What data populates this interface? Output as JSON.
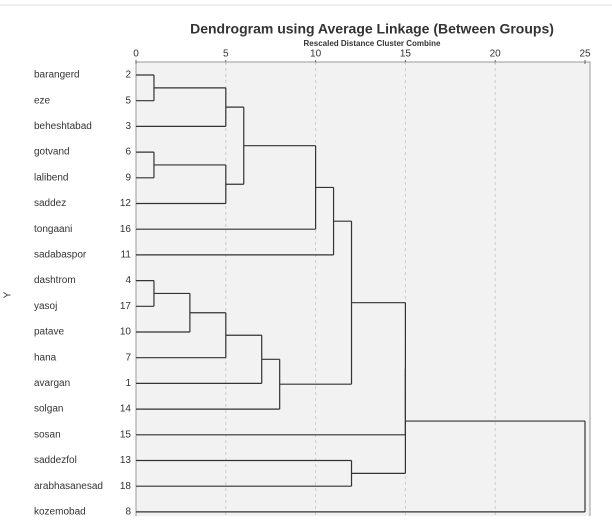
{
  "chart_data": {
    "type": "dendrogram",
    "title": "Dendrogram using Average Linkage (Between Groups)",
    "subtitle": "Rescaled Distance Cluster Combine",
    "y_label": "Y",
    "labels": [
      "barangerd",
      "eze",
      "beheshtabad",
      "gotvand",
      "lalibend",
      "saddez",
      "tongaani",
      "sadabaspor",
      "dashtrom",
      "yasoj",
      "patave",
      "hana",
      "avargan",
      "solgan",
      "sosan",
      "saddezfol",
      "arabhasanesad",
      "kozemobad"
    ],
    "case_numbers": [
      2,
      5,
      3,
      6,
      9,
      12,
      16,
      11,
      4,
      17,
      10,
      7,
      1,
      14,
      15,
      13,
      18,
      8
    ],
    "merges": [
      {
        "join": [
          0,
          1
        ],
        "height": 1
      },
      {
        "join": [
          18,
          2
        ],
        "height": 5
      },
      {
        "join": [
          3,
          4
        ],
        "height": 1
      },
      {
        "join": [
          20,
          5
        ],
        "height": 5
      },
      {
        "join": [
          19,
          21
        ],
        "height": 6
      },
      {
        "join": [
          22,
          6
        ],
        "height": 10
      },
      {
        "join": [
          23,
          7
        ],
        "height": 11
      },
      {
        "join": [
          8,
          9
        ],
        "height": 1
      },
      {
        "join": [
          25,
          10
        ],
        "height": 3
      },
      {
        "join": [
          26,
          11
        ],
        "height": 5
      },
      {
        "join": [
          27,
          12
        ],
        "height": 7
      },
      {
        "join": [
          28,
          13
        ],
        "height": 8
      },
      {
        "join": [
          24,
          29
        ],
        "height": 12
      },
      {
        "join": [
          15,
          16
        ],
        "height": 12
      },
      {
        "join": [
          30,
          14
        ],
        "height": 15
      },
      {
        "join": [
          32,
          31
        ],
        "height": 15
      },
      {
        "join": [
          33,
          17
        ],
        "height": 25
      }
    ],
    "xlim": [
      0,
      25
    ],
    "xticks": [
      0,
      5,
      10,
      15,
      20,
      25
    ],
    "grid": true,
    "color": "#333333"
  }
}
